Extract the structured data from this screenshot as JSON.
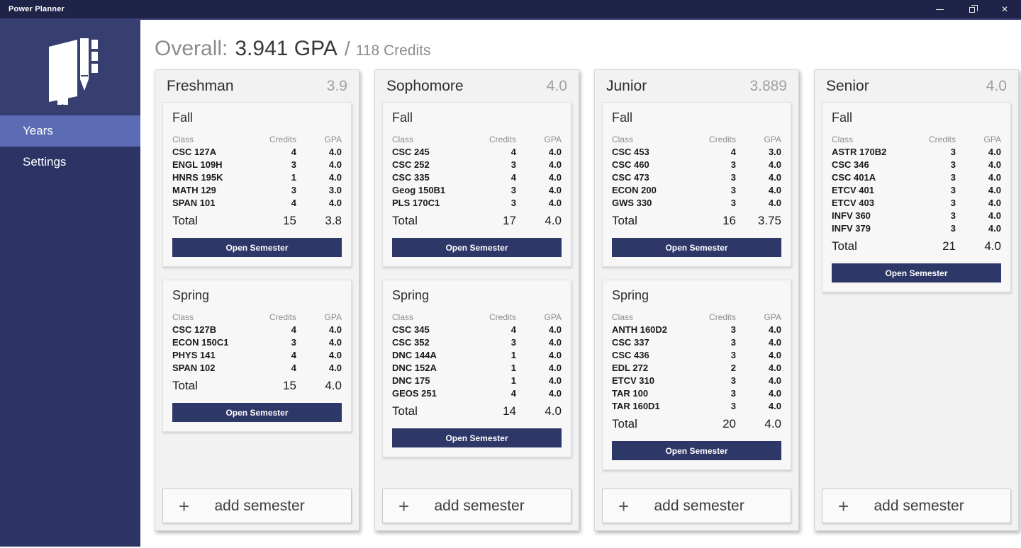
{
  "window": {
    "title": "Power Planner",
    "close_glyph": "✕"
  },
  "sidebar": {
    "items": [
      {
        "label": "Years",
        "selected": true
      },
      {
        "label": "Settings",
        "selected": false
      }
    ]
  },
  "header": {
    "overall_label": "Overall:",
    "gpa_value": "3.941 GPA",
    "separator": "/",
    "credits_value": "118 Credits"
  },
  "table": {
    "col_class": "Class",
    "col_credits": "Credits",
    "col_gpa": "GPA",
    "total_label": "Total",
    "open_button": "Open Semester",
    "add_button": "add semester",
    "add_icon": "+"
  },
  "years": [
    {
      "name": "Freshman",
      "gpa": "3.9",
      "semesters": [
        {
          "name": "Fall",
          "classes": [
            [
              "CSC 127A",
              "4",
              "4.0"
            ],
            [
              "ENGL 109H",
              "3",
              "4.0"
            ],
            [
              "HNRS 195K",
              "1",
              "4.0"
            ],
            [
              "MATH 129",
              "3",
              "3.0"
            ],
            [
              "SPAN 101",
              "4",
              "4.0"
            ]
          ],
          "total_credits": "15",
          "total_gpa": "3.8"
        },
        {
          "name": "Spring",
          "classes": [
            [
              "CSC 127B",
              "4",
              "4.0"
            ],
            [
              "ECON 150C1",
              "3",
              "4.0"
            ],
            [
              "PHYS 141",
              "4",
              "4.0"
            ],
            [
              "SPAN 102",
              "4",
              "4.0"
            ]
          ],
          "total_credits": "15",
          "total_gpa": "4.0"
        }
      ]
    },
    {
      "name": "Sophomore",
      "gpa": "4.0",
      "semesters": [
        {
          "name": "Fall",
          "classes": [
            [
              "CSC 245",
              "4",
              "4.0"
            ],
            [
              "CSC 252",
              "3",
              "4.0"
            ],
            [
              "CSC 335",
              "4",
              "4.0"
            ],
            [
              "Geog 150B1",
              "3",
              "4.0"
            ],
            [
              "PLS 170C1",
              "3",
              "4.0"
            ]
          ],
          "total_credits": "17",
          "total_gpa": "4.0"
        },
        {
          "name": "Spring",
          "classes": [
            [
              "CSC 345",
              "4",
              "4.0"
            ],
            [
              "CSC 352",
              "3",
              "4.0"
            ],
            [
              "DNC 144A",
              "1",
              "4.0"
            ],
            [
              "DNC 152A",
              "1",
              "4.0"
            ],
            [
              "DNC 175",
              "1",
              "4.0"
            ],
            [
              "GEOS 251",
              "4",
              "4.0"
            ]
          ],
          "total_credits": "14",
          "total_gpa": "4.0"
        }
      ]
    },
    {
      "name": "Junior",
      "gpa": "3.889",
      "semesters": [
        {
          "name": "Fall",
          "classes": [
            [
              "CSC 453",
              "4",
              "3.0"
            ],
            [
              "CSC 460",
              "3",
              "4.0"
            ],
            [
              "CSC 473",
              "3",
              "4.0"
            ],
            [
              "ECON 200",
              "3",
              "4.0"
            ],
            [
              "GWS 330",
              "3",
              "4.0"
            ]
          ],
          "total_credits": "16",
          "total_gpa": "3.75"
        },
        {
          "name": "Spring",
          "classes": [
            [
              "ANTH 160D2",
              "3",
              "4.0"
            ],
            [
              "CSC 337",
              "3",
              "4.0"
            ],
            [
              "CSC 436",
              "3",
              "4.0"
            ],
            [
              "EDL 272",
              "2",
              "4.0"
            ],
            [
              "ETCV 310",
              "3",
              "4.0"
            ],
            [
              "TAR 100",
              "3",
              "4.0"
            ],
            [
              "TAR 160D1",
              "3",
              "4.0"
            ]
          ],
          "total_credits": "20",
          "total_gpa": "4.0"
        }
      ]
    },
    {
      "name": "Senior",
      "gpa": "4.0",
      "semesters": [
        {
          "name": "Fall",
          "classes": [
            [
              "ASTR 170B2",
              "3",
              "4.0"
            ],
            [
              "CSC 346",
              "3",
              "4.0"
            ],
            [
              "CSC 401A",
              "3",
              "4.0"
            ],
            [
              "ETCV 401",
              "3",
              "4.0"
            ],
            [
              "ETCV 403",
              "3",
              "4.0"
            ],
            [
              "INFV 360",
              "3",
              "4.0"
            ],
            [
              "INFV 379",
              "3",
              "4.0"
            ]
          ],
          "total_credits": "21",
          "total_gpa": "4.0"
        }
      ]
    }
  ],
  "colors": {
    "titlebar": "#1e2347",
    "sidebar": "#2c3465",
    "sidebar_top": "#363f70",
    "nav_selected": "#5b6cb5",
    "accent_button": "#2d3768",
    "card_bg": "#f2f2f2"
  }
}
